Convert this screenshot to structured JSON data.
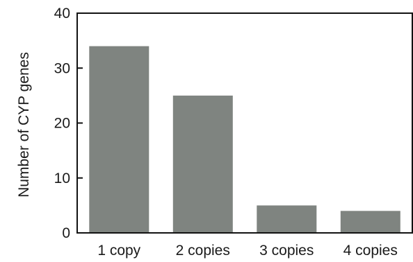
{
  "chart_data": {
    "type": "bar",
    "title": "",
    "xlabel": "",
    "ylabel": "Number of  CYP genes",
    "categories": [
      "1 copy",
      "2 copies",
      "3 copies",
      "4 copies"
    ],
    "values": [
      34,
      25,
      5,
      4
    ],
    "ylim": [
      0,
      40
    ],
    "yticks": [
      0,
      10,
      20,
      30,
      40
    ],
    "grid": false,
    "legend": "none",
    "bar_color": "#7f8480",
    "axis_color": "#111111"
  }
}
